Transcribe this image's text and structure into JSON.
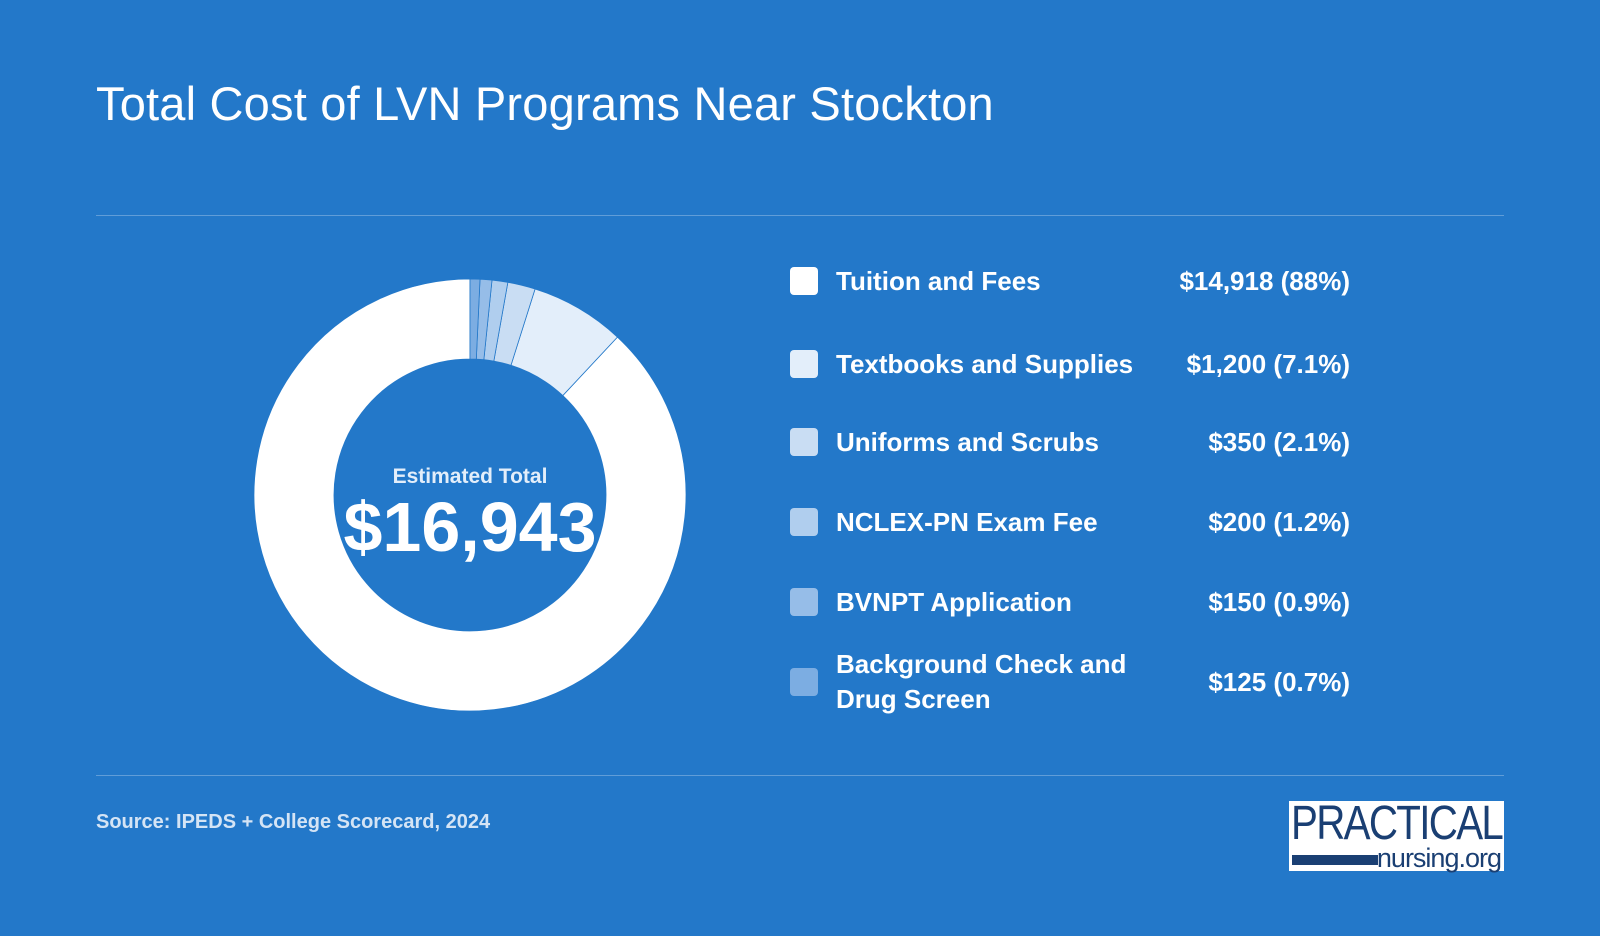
{
  "page": {
    "title": "Total Cost of LVN Programs Near Stockton",
    "source": "Source: IPEDS + College Scorecard, 2024",
    "logo_top": "PRACTICAL",
    "logo_bottom": "nursing.org"
  },
  "colors": {
    "background": "#2378c9",
    "logo_text": "#1a3f73"
  },
  "chart_data": {
    "type": "pie",
    "title": "Total Cost of LVN Programs Near Stockton",
    "center_caption": "Estimated Total",
    "center_value": "$16,943",
    "total": 16943,
    "legend_position": "right",
    "categories": [
      "Tuition and Fees",
      "Textbooks and Supplies",
      "Uniforms and Scrubs",
      "NCLEX-PN Exam Fee",
      "BVNPT Application",
      "Background Check and Drug Screen"
    ],
    "values": [
      14918,
      1200,
      350,
      200,
      150,
      125
    ],
    "value_labels": [
      "$14,918 (88%)",
      "$1,200 (7.1%)",
      "$350 (2.1%)",
      "$200 (1.2%)",
      "$150 (0.9%)",
      "$125 (0.7%)"
    ],
    "colors": [
      "#ffffff",
      "#e3eefa",
      "#c9ddf3",
      "#b0ceee",
      "#96bde8",
      "#7cade2"
    ]
  }
}
